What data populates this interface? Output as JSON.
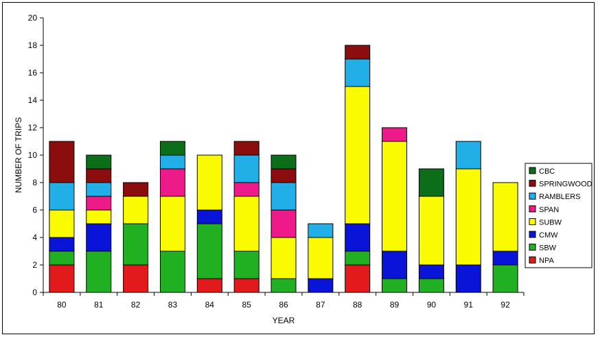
{
  "chart_data": {
    "type": "bar",
    "stacked": true,
    "title": "",
    "xlabel": "YEAR",
    "ylabel": "NUMBER OF TRIPS",
    "ylim": [
      0,
      20
    ],
    "yticks": [
      0,
      2,
      4,
      6,
      8,
      10,
      12,
      14,
      16,
      18,
      20
    ],
    "grid": false,
    "legend_position": "right",
    "categories": [
      "80",
      "81",
      "82",
      "83",
      "84",
      "85",
      "86",
      "87",
      "88",
      "89",
      "90",
      "91",
      "92"
    ],
    "series": [
      {
        "name": "NPA",
        "color": "#e31a1c",
        "values": [
          2,
          0,
          2,
          0,
          1,
          1,
          0,
          0,
          2,
          0,
          0,
          0,
          0
        ]
      },
      {
        "name": "SBW",
        "color": "#21b021",
        "values": [
          1,
          3,
          3,
          3,
          4,
          2,
          1,
          0,
          1,
          1,
          1,
          0,
          2
        ]
      },
      {
        "name": "CMW",
        "color": "#0a14d8",
        "values": [
          1,
          2,
          0,
          0,
          1,
          0,
          0,
          1,
          2,
          2,
          1,
          2,
          1
        ]
      },
      {
        "name": "SUBW",
        "color": "#fafa00",
        "values": [
          2,
          1,
          2,
          4,
          4,
          4,
          3,
          3,
          10,
          8,
          5,
          7,
          5
        ]
      },
      {
        "name": "SPAN",
        "color": "#ee1a8a",
        "values": [
          0,
          1,
          0,
          2,
          0,
          1,
          2,
          0,
          0,
          1,
          0,
          0,
          0
        ]
      },
      {
        "name": "RAMBLERS",
        "color": "#22aee6",
        "values": [
          2,
          1,
          0,
          1,
          0,
          2,
          2,
          1,
          2,
          0,
          0,
          2,
          0
        ]
      },
      {
        "name": "SPRINGWOOD",
        "color": "#8b0d0d",
        "values": [
          3,
          1,
          1,
          0,
          0,
          1,
          1,
          0,
          1,
          0,
          0,
          0,
          0
        ]
      },
      {
        "name": "CBC",
        "color": "#0d6e1a",
        "values": [
          0,
          1,
          0,
          1,
          0,
          0,
          1,
          0,
          0,
          0,
          2,
          0,
          0
        ]
      }
    ]
  }
}
